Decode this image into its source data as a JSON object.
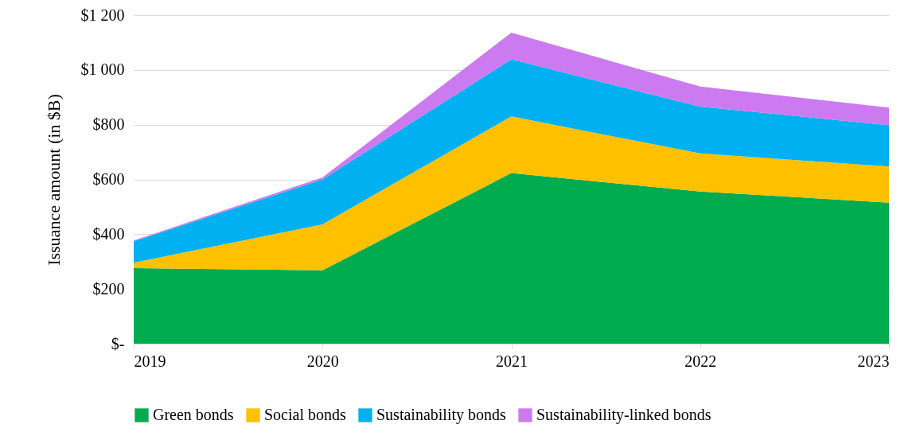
{
  "chart_data": {
    "type": "area",
    "stacked": true,
    "ylabel": "Issuance amount (in $B)",
    "categories": [
      "2019",
      "2020",
      "2021",
      "2022",
      "2023"
    ],
    "series": [
      {
        "name": "Green bonds",
        "color": "#00ac4e",
        "values": [
          276,
          268,
          623,
          556,
          515
        ]
      },
      {
        "name": "Social bonds",
        "color": "#ffc000",
        "values": [
          20,
          168,
          207,
          139,
          132
        ]
      },
      {
        "name": "Sustainability bonds",
        "color": "#00b0f0",
        "values": [
          78,
          164,
          209,
          171,
          151
        ]
      },
      {
        "name": "Sustainability-linked bonds",
        "color": "#cc7aef",
        "values": [
          3,
          7,
          97,
          73,
          64
        ]
      }
    ],
    "ylim": [
      0,
      1200
    ],
    "yticks": [
      {
        "value": 0,
        "label": "$-"
      },
      {
        "value": 200,
        "label": "$200"
      },
      {
        "value": 400,
        "label": "$400"
      },
      {
        "value": 600,
        "label": "$600"
      },
      {
        "value": 800,
        "label": "$800"
      },
      {
        "value": 1000,
        "label": "$1 000"
      },
      {
        "value": 1200,
        "label": "$1 200"
      }
    ],
    "grid": "y",
    "legend": "bottom"
  }
}
